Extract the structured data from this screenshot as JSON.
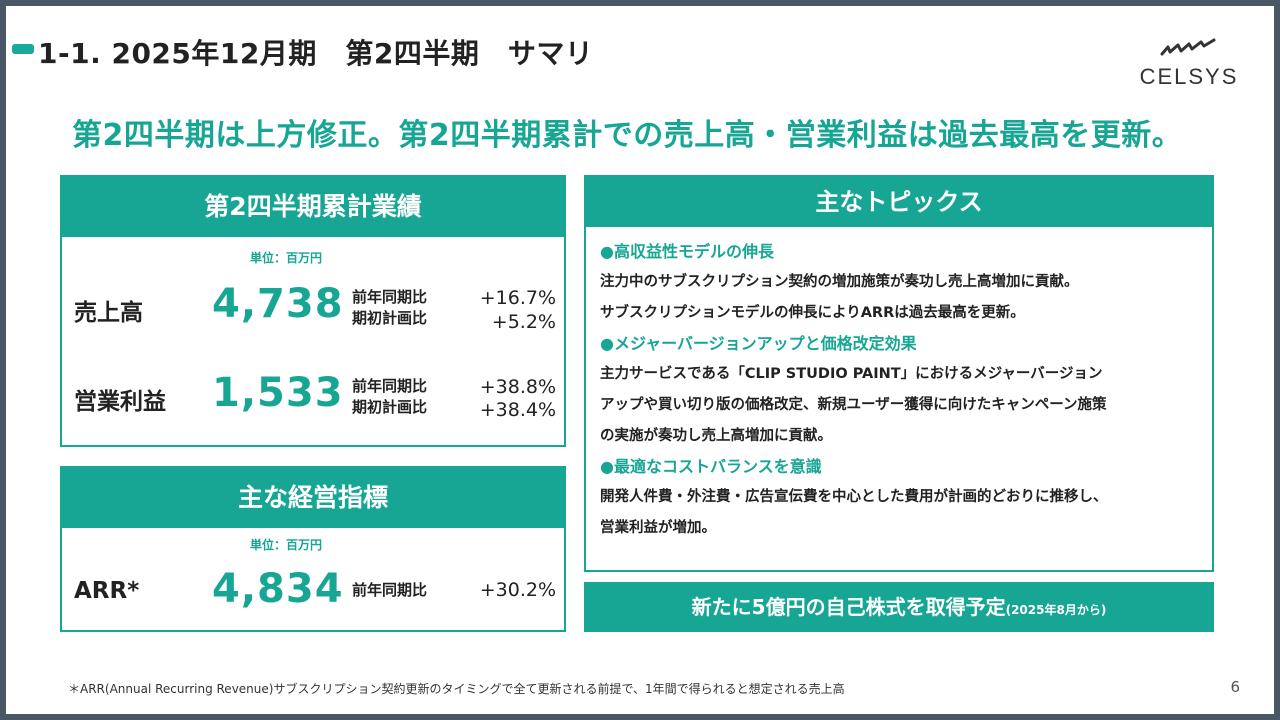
{
  "title": "1-1. 2025年12月期　第2四半期　サマリ",
  "logo": {
    "text": "CELSYS"
  },
  "headline": "第2四半期は上方修正。第2四半期累計での売上高・営業利益は過去最高を更新。",
  "performance": {
    "header": "第2四半期累計業績",
    "unit": "単位：百万円",
    "rows": [
      {
        "label": "売上高",
        "value": "4,738",
        "cmp1": "前年同期比",
        "pct1": "+16.7%",
        "cmp2": "期初計画比",
        "pct2": "+5.2%"
      },
      {
        "label": "営業利益",
        "value": "1,533",
        "cmp1": "前年同期比",
        "pct1": "+38.8%",
        "cmp2": "期初計画比",
        "pct2": "+38.4%"
      }
    ]
  },
  "kpi": {
    "header": "主な経営指標",
    "unit": "単位：百万円",
    "label": "ARR*",
    "value": "4,834",
    "cmp": "前年同期比",
    "pct": "+30.2%"
  },
  "topics": {
    "header": "主なトピックス",
    "sections": [
      {
        "heading": "●高収益性モデルの伸長",
        "lines": [
          "注力中のサブスクリプション契約の増加施策が奏功し売上高増加に貢献。",
          "サブスクリプションモデルの伸長によりARRは過去最高を更新。"
        ]
      },
      {
        "heading": "●メジャーバージョンアップと価格改定効果",
        "lines": [
          "主力サービスである「CLIP STUDIO PAINT」におけるメジャーバージョン",
          "アップや買い切り版の価格改定、新規ユーザー獲得に向けたキャンペーン施策",
          "の実施が奏功し売上高増加に貢献。"
        ]
      },
      {
        "heading": "●最適なコストバランスを意識",
        "lines": [
          "開発人件費・外注費・広告宣伝費を中心とした費用が計画的どおりに推移し、",
          "営業利益が増加。"
        ]
      }
    ]
  },
  "buyback": {
    "main": "新たに5億円の自己株式を取得予定",
    "sub": "(2025年8月から)"
  },
  "footnote": "＊ARR(Annual Recurring Revenue)サブスクリプション契約更新のタイミングで全て更新される前提で、1年間で得られると想定される売上高",
  "page_number": "6",
  "colors": {
    "accent": "#17a594",
    "frame": "#4a5566"
  }
}
